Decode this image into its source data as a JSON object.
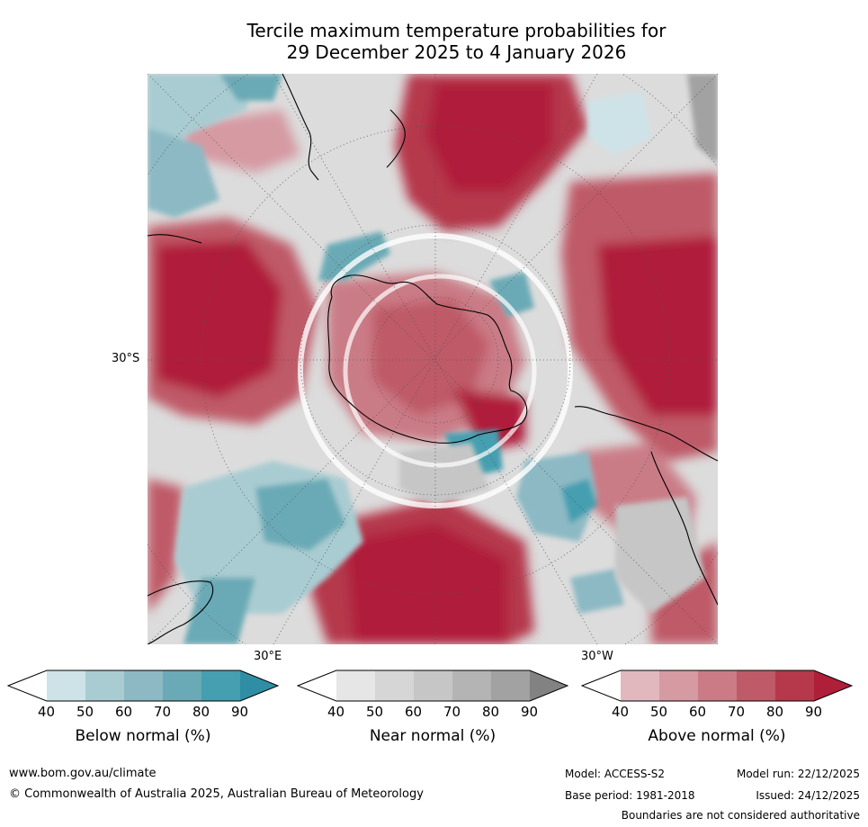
{
  "title": {
    "line1": "Tercile maximum temperature probabilities for",
    "line2": "29 December 2025 to 4 January 2026"
  },
  "map": {
    "lat_label": "30°S",
    "lon_label_east": "30°E",
    "lon_label_west": "30°W",
    "colors": {
      "above": [
        "#e2b8bf",
        "#d69aa3",
        "#ca7b86",
        "#bf5a68",
        "#b5384b",
        "#b01f3a"
      ],
      "near": [
        "#e6e6e6",
        "#d6d6d6",
        "#c6c6c6",
        "#b4b4b4",
        "#a2a2a2",
        "#828282"
      ],
      "below": [
        "#cde3e8",
        "#a9ccd2",
        "#8cb9c4",
        "#6aaab6",
        "#459fb0",
        "#2f8ea3"
      ]
    }
  },
  "colorbars": [
    {
      "title": "Below normal (%)",
      "ticks": [
        "40",
        "50",
        "60",
        "70",
        "80",
        "90"
      ],
      "colors": [
        "#ffffff",
        "#cde3e8",
        "#a9ccd2",
        "#8cb9c4",
        "#6aaab6",
        "#459fb0",
        "#2f8ea3"
      ]
    },
    {
      "title": "Near normal (%)",
      "ticks": [
        "40",
        "50",
        "60",
        "70",
        "80",
        "90"
      ],
      "colors": [
        "#ffffff",
        "#e6e6e6",
        "#d6d6d6",
        "#c6c6c6",
        "#b4b4b4",
        "#a2a2a2",
        "#828282"
      ]
    },
    {
      "title": "Above normal (%)",
      "ticks": [
        "40",
        "50",
        "60",
        "70",
        "80",
        "90"
      ],
      "colors": [
        "#ffffff",
        "#e2b8bf",
        "#d69aa3",
        "#ca7b86",
        "#bf5a68",
        "#b5384b",
        "#b01f3a"
      ]
    }
  ],
  "footer": {
    "url": "www.bom.gov.au/climate",
    "copyright": "© Commonwealth of Australia 2025, Australian Bureau of Meteorology",
    "model": "Model: ACCESS-S2",
    "base_period": "Base period: 1981-2018",
    "model_run": "Model run: 22/12/2025",
    "issued": "Issued: 24/12/2025",
    "disclaimer": "Boundaries are not considered authoritative"
  }
}
